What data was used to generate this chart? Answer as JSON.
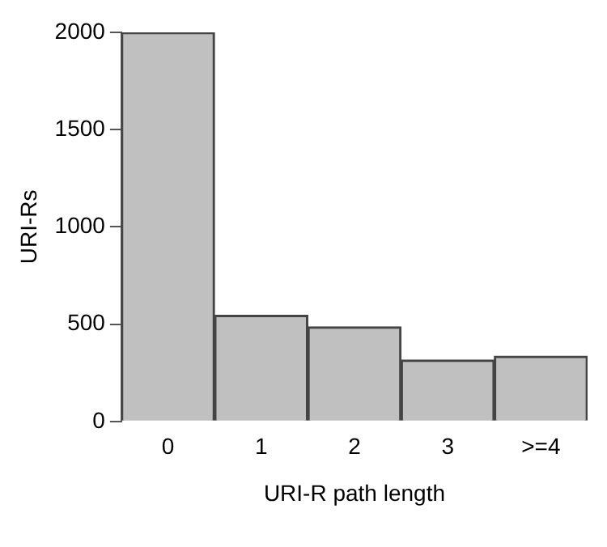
{
  "chart_data": {
    "type": "bar",
    "categories": [
      "0",
      "1",
      "2",
      "3",
      ">=4"
    ],
    "values": [
      2000,
      545,
      486,
      316,
      335
    ],
    "color": "#c0c0c0",
    "xlabel": "URI-R path length",
    "ylabel": "URI-Rs",
    "ylim": [
      0,
      2000
    ],
    "yticks": [
      0,
      500,
      1000,
      1500,
      2000
    ],
    "grid": false,
    "legend": false
  }
}
